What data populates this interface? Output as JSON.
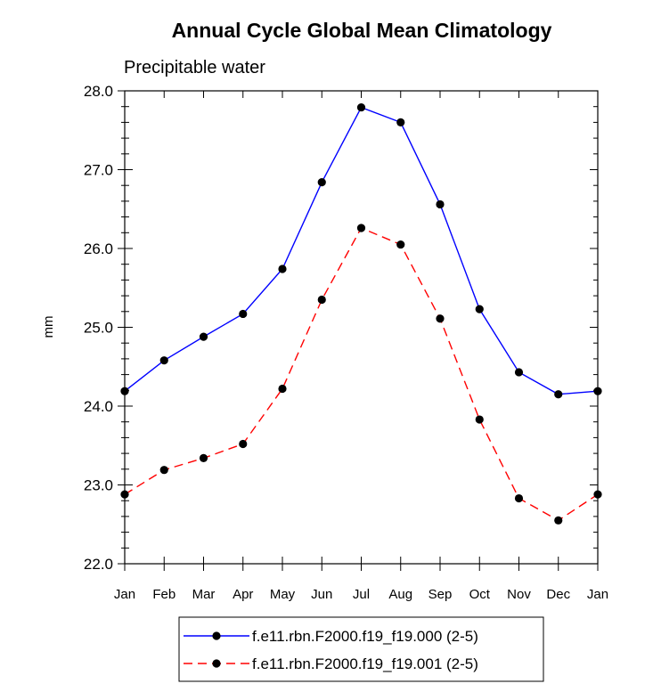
{
  "chart_data": {
    "type": "line",
    "title": "Annual Cycle Global Mean Climatology",
    "subtitle": "Precipitable water",
    "xlabel": "",
    "ylabel": "mm",
    "categories": [
      "Jan",
      "Feb",
      "Mar",
      "Apr",
      "May",
      "Jun",
      "Jul",
      "Aug",
      "Sep",
      "Oct",
      "Nov",
      "Dec",
      "Jan"
    ],
    "ylim": [
      22.0,
      28.0
    ],
    "yticks": [
      "22.0",
      "23.0",
      "24.0",
      "25.0",
      "26.0",
      "27.0",
      "28.0"
    ],
    "grid": false,
    "legend_position": "bottom",
    "series": [
      {
        "name": "f.e11.rbn.F2000.f19_f19.000 (2-5)",
        "color": "#0000ff",
        "dash": "solid",
        "marker": "filled-circle",
        "values": [
          24.19,
          24.58,
          24.88,
          25.17,
          25.74,
          26.84,
          27.79,
          27.6,
          26.56,
          25.23,
          24.43,
          24.15,
          24.19
        ]
      },
      {
        "name": "f.e11.rbn.F2000.f19_f19.001 (2-5)",
        "color": "#ff0000",
        "dash": "dashed",
        "marker": "filled-circle",
        "values": [
          22.88,
          23.19,
          23.34,
          23.52,
          24.22,
          25.35,
          26.26,
          26.05,
          25.11,
          23.83,
          22.83,
          22.55,
          22.88
        ]
      }
    ]
  }
}
